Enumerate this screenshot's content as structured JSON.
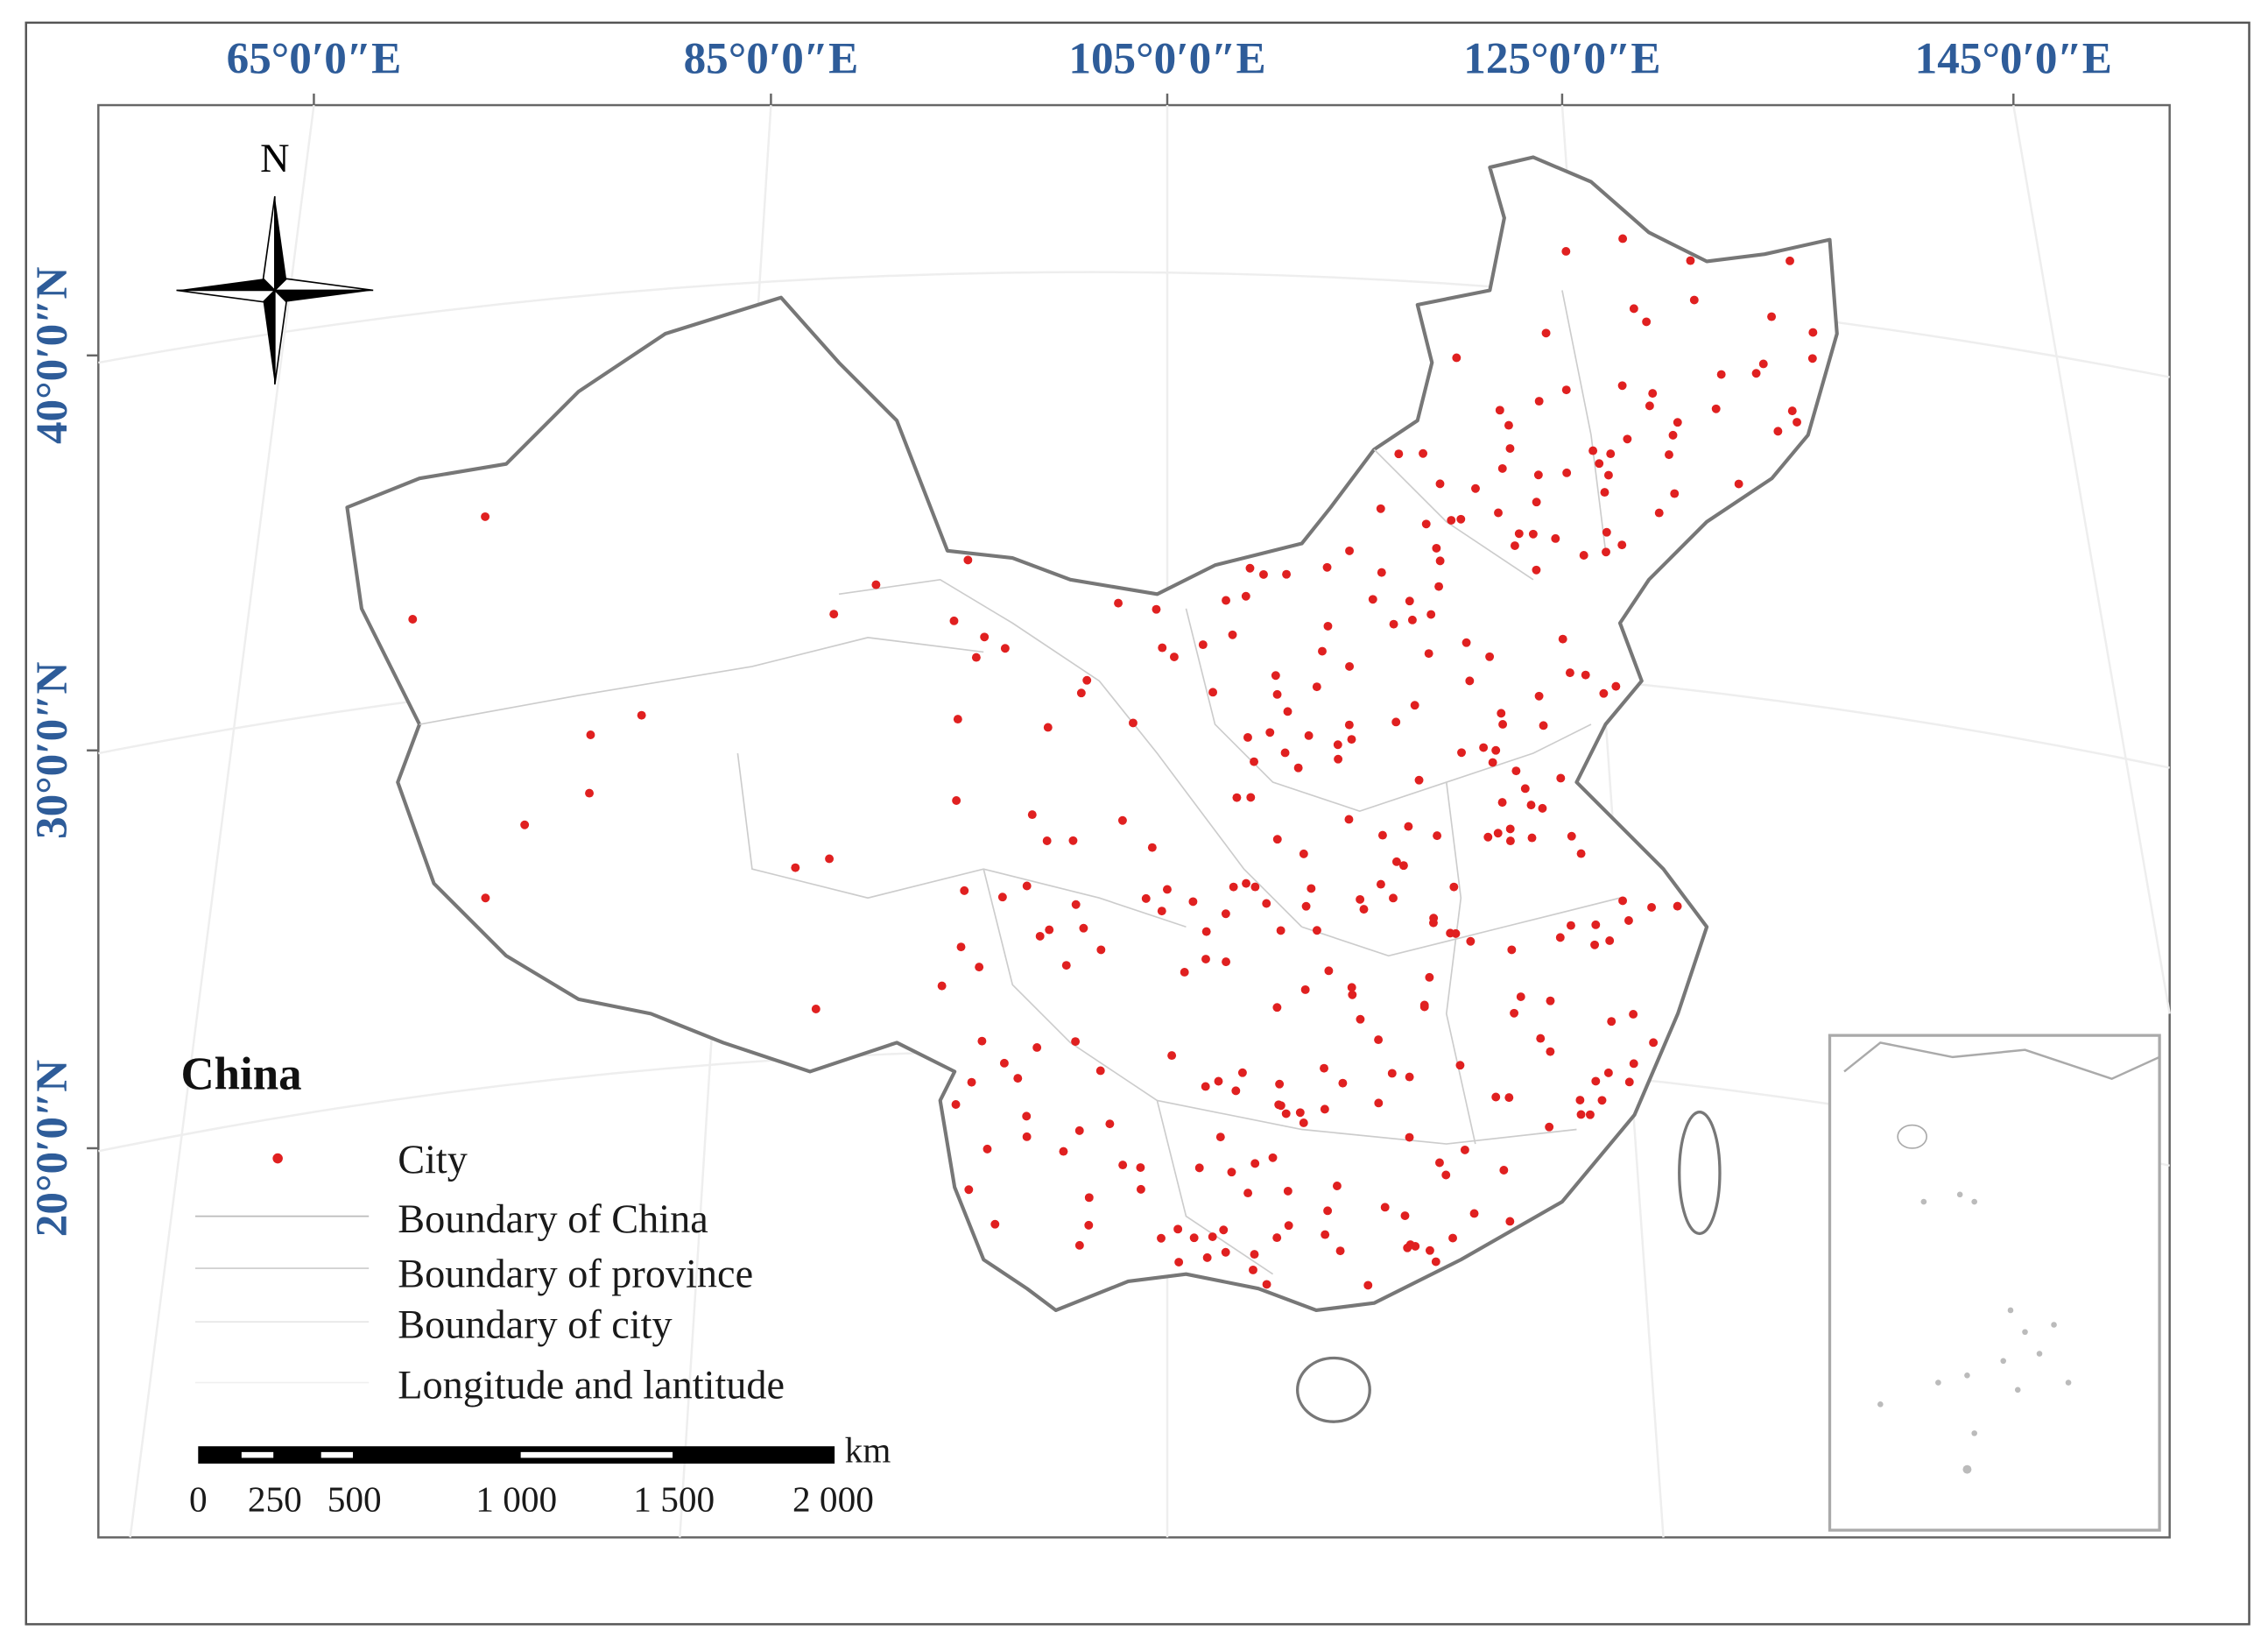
{
  "map": {
    "longitude_labels": [
      "65°0′0″E",
      "85°0′0″E",
      "105°0′0″E",
      "125°0′0″E",
      "145°0′0″E"
    ],
    "latitude_labels": [
      "40°0′0″N",
      "30°0′0″N",
      "20°0′0″N"
    ],
    "north_arrow": "N",
    "legend": {
      "title": "China",
      "items": [
        "City",
        "Boundary of China",
        "Boundary of province",
        "Boundary of city",
        "Longitude and lantitude"
      ]
    },
    "scale_bar": {
      "labels": [
        "0",
        "250",
        "500",
        "1 000",
        "1 500",
        "2 000"
      ],
      "unit": "km"
    }
  }
}
